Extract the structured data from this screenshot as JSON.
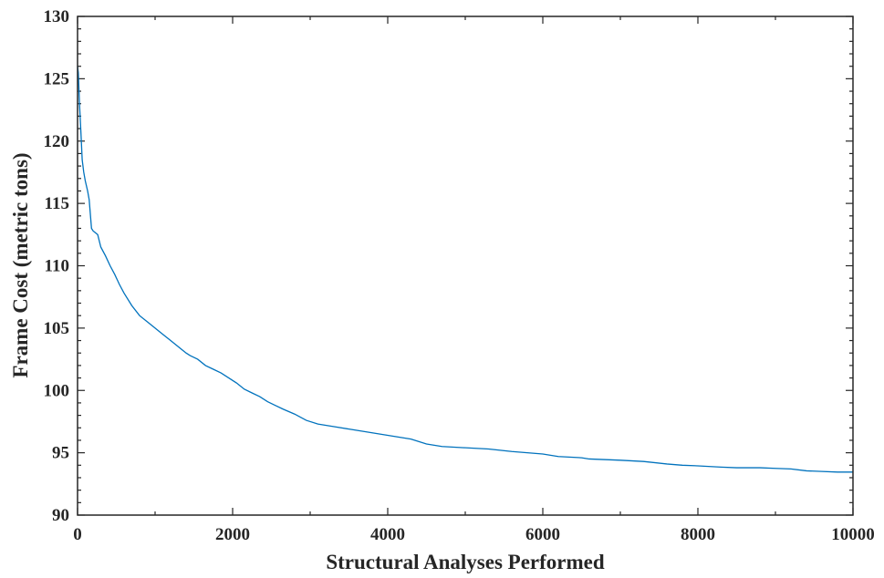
{
  "chart_data": {
    "type": "line",
    "title": "",
    "xlabel": "Structural Analyses Performed",
    "ylabel": "Frame Cost (metric tons)",
    "xlim": [
      0,
      10000
    ],
    "ylim": [
      90,
      130
    ],
    "xticks": [
      0,
      2000,
      4000,
      6000,
      8000,
      10000
    ],
    "yticks": [
      90,
      95,
      100,
      105,
      110,
      115,
      120,
      125,
      130
    ],
    "grid": false,
    "legend": "none",
    "line_color": "#0072BD",
    "series": [
      {
        "x": [
          0,
          10,
          25,
          45,
          60,
          80,
          100,
          130,
          150,
          180,
          200,
          260,
          300,
          360,
          420,
          480,
          540,
          600,
          700,
          800,
          900,
          1000,
          1100,
          1200,
          1300,
          1400,
          1450,
          1550,
          1650,
          1750,
          1850,
          1950,
          2050,
          2150,
          2250,
          2350,
          2450,
          2550,
          2650,
          2800,
          2950,
          3100,
          3300,
          3500,
          3700,
          3900,
          4100,
          4300,
          4500,
          4700,
          5000,
          5300,
          5600,
          5800,
          6000,
          6200,
          6500,
          6600,
          7000,
          7300,
          7600,
          7800,
          8000,
          8300,
          8500,
          8800,
          9000,
          9200,
          9400,
          9600,
          9800,
          10000
        ],
        "y": [
          126,
          125.5,
          123,
          120.5,
          118.5,
          117.5,
          116.8,
          116,
          115.3,
          113,
          112.8,
          112.5,
          111.5,
          110.8,
          110,
          109.3,
          108.5,
          107.8,
          106.8,
          106,
          105.5,
          105,
          104.5,
          104,
          103.5,
          103,
          102.8,
          102.5,
          102,
          101.7,
          101.4,
          101,
          100.6,
          100.1,
          99.8,
          99.5,
          99.1,
          98.8,
          98.5,
          98.1,
          97.6,
          97.3,
          97.1,
          96.9,
          96.7,
          96.5,
          96.3,
          96.1,
          95.7,
          95.5,
          95.4,
          95.3,
          95.1,
          95,
          94.9,
          94.7,
          94.6,
          94.5,
          94.4,
          94.3,
          94.1,
          94,
          93.95,
          93.85,
          93.8,
          93.8,
          93.75,
          93.7,
          93.55,
          93.5,
          93.45,
          93.45
        ]
      }
    ]
  }
}
